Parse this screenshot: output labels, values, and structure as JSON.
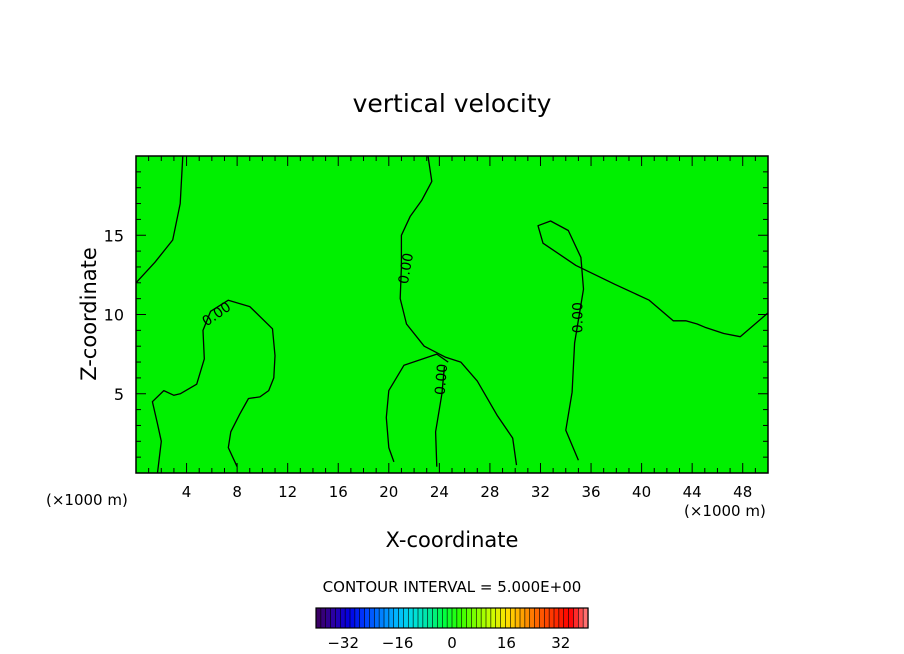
{
  "chart_data": {
    "type": "contour",
    "title": "vertical velocity",
    "xlabel": "X-coordinate",
    "ylabel": "Z-coordinate",
    "x_unit_left": "(×1000 m)",
    "x_unit_right": "(×1000 m)",
    "xlim": [
      0,
      50
    ],
    "ylim": [
      0,
      20
    ],
    "xticks": [
      4,
      8,
      12,
      16,
      20,
      24,
      28,
      32,
      36,
      40,
      44,
      48
    ],
    "yticks": [
      5,
      10,
      15
    ],
    "contour_interval_label": "CONTOUR INTERVAL = 5.000E+00",
    "contour_labels": [
      {
        "text": "0.00",
        "x": 6.4,
        "z": 10.0,
        "angle": -35
      },
      {
        "text": "0.00",
        "x": 21.4,
        "z": 12.9,
        "angle": -80
      },
      {
        "text": "0.00",
        "x": 24.2,
        "z": 5.9,
        "angle": -85
      },
      {
        "text": "0.00",
        "x": 35.0,
        "z": 9.8,
        "angle": -90
      }
    ],
    "contours": [
      [
        [
          0,
          12.0
        ],
        [
          1.5,
          13.3
        ],
        [
          2.9,
          14.7
        ],
        [
          3.5,
          17.0
        ],
        [
          3.7,
          20.0
        ]
      ],
      [
        [
          23.1,
          20.0
        ],
        [
          23.4,
          18.4
        ],
        [
          22.6,
          17.2
        ],
        [
          21.7,
          16.2
        ],
        [
          21.0,
          15.0
        ],
        [
          21.0,
          13.0
        ],
        [
          20.9,
          11.0
        ],
        [
          21.4,
          9.4
        ],
        [
          22.8,
          8.0
        ],
        [
          24.5,
          7.3
        ],
        [
          25.7,
          7.0
        ],
        [
          27.0,
          5.8
        ],
        [
          28.6,
          3.6
        ],
        [
          29.8,
          2.2
        ],
        [
          30.1,
          0.5
        ]
      ],
      [
        [
          24.7,
          7.0
        ],
        [
          23.8,
          7.5
        ],
        [
          21.2,
          6.8
        ],
        [
          20.0,
          5.2
        ],
        [
          19.8,
          3.5
        ],
        [
          20.0,
          1.6
        ],
        [
          20.4,
          0.7
        ]
      ],
      [
        [
          24.4,
          6.7
        ],
        [
          24.2,
          5.0
        ],
        [
          23.7,
          2.6
        ],
        [
          23.8,
          0.4
        ]
      ],
      [
        [
          35.0,
          0.8
        ],
        [
          34.0,
          2.7
        ],
        [
          34.5,
          5.1
        ],
        [
          34.7,
          8.2
        ],
        [
          35.4,
          11.6
        ],
        [
          35.2,
          13.6
        ],
        [
          34.2,
          15.3
        ],
        [
          32.8,
          15.9
        ],
        [
          31.8,
          15.6
        ],
        [
          32.2,
          14.5
        ],
        [
          34.8,
          13.1
        ],
        [
          37.9,
          11.9
        ],
        [
          40.6,
          10.9
        ],
        [
          42.5,
          9.6
        ],
        [
          43.5,
          9.6
        ],
        [
          44.4,
          9.4
        ],
        [
          45.0,
          9.2
        ],
        [
          46.5,
          8.8
        ],
        [
          47.8,
          8.6
        ],
        [
          50.0,
          10.1
        ]
      ],
      [
        [
          1.7,
          0
        ],
        [
          2.0,
          2.0
        ],
        [
          1.7,
          3.1
        ],
        [
          1.3,
          4.5
        ],
        [
          2.2,
          5.2
        ],
        [
          3.0,
          4.9
        ],
        [
          3.5,
          5.0
        ],
        [
          4.8,
          5.6
        ],
        [
          5.4,
          7.2
        ],
        [
          5.3,
          9.0
        ],
        [
          5.9,
          10.2
        ],
        [
          7.3,
          10.9
        ],
        [
          9.0,
          10.5
        ],
        [
          10.8,
          9.1
        ],
        [
          11.0,
          7.4
        ],
        [
          10.9,
          6.0
        ],
        [
          10.5,
          5.2
        ],
        [
          9.8,
          4.8
        ],
        [
          8.9,
          4.7
        ],
        [
          8.2,
          3.7
        ],
        [
          7.5,
          2.6
        ],
        [
          7.3,
          1.6
        ],
        [
          8.0,
          0.4
        ]
      ]
    ],
    "colorbar": {
      "ticks": [
        -32,
        -16,
        0,
        16,
        32
      ],
      "range": [
        -40,
        40
      ],
      "colors": [
        "#3b0066",
        "#2a00a8",
        "#0000e6",
        "#0040ff",
        "#0080ff",
        "#00b8ff",
        "#00e0e0",
        "#00e8a0",
        "#00ff40",
        "#30ff00",
        "#80ff00",
        "#c8ff00",
        "#ffe000",
        "#ffa000",
        "#ff6000",
        "#ff3000",
        "#ff0000",
        "#ff7070"
      ]
    },
    "field_background_color": "#00f000",
    "grid": false
  }
}
